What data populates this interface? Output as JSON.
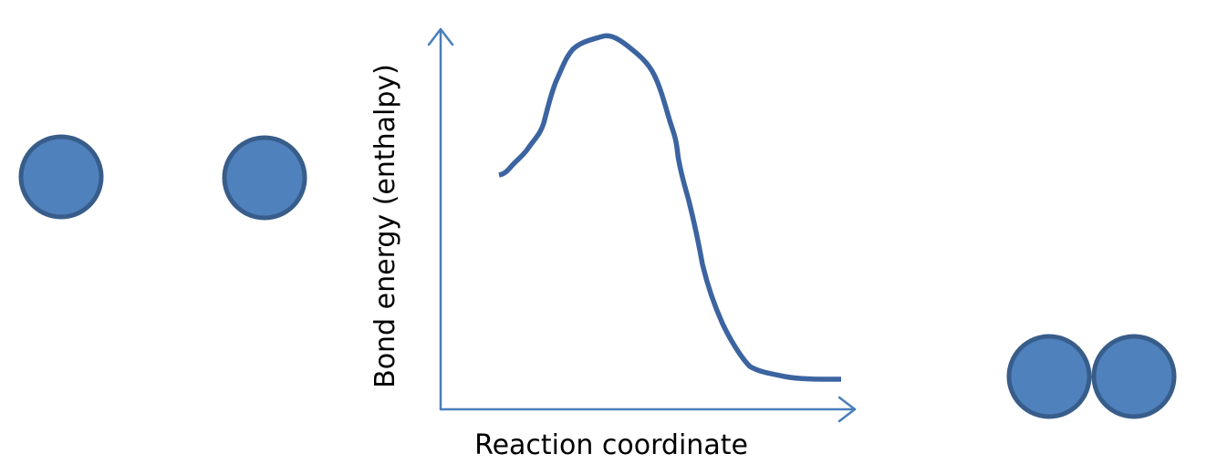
{
  "chart_data": {
    "type": "line",
    "xlabel": "Reaction coordinate",
    "ylabel": "Bond energy (enthalpy)",
    "curve_shape": "energy profile: starts at mid level, rises to a maximum, then drops to a low plateau"
  },
  "colors": {
    "atom_fill": "#4f81bd",
    "atom_stroke": "#385d8a",
    "curve": "#3b64a0",
    "axis": "#4a7ebb",
    "text": "#000000"
  },
  "reactants": {
    "label": "",
    "atom_count": 2,
    "bonded": false
  },
  "products": {
    "label": "",
    "atom_count": 2,
    "bonded": true
  }
}
